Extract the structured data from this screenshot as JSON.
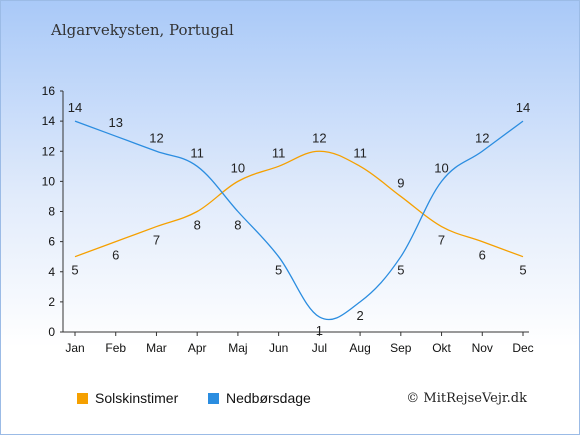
{
  "title": "Algarvekysten, Portugal",
  "credit": "© MitRejseVejr.dk",
  "chart_data": {
    "type": "line",
    "categories": [
      "Jan",
      "Feb",
      "Mar",
      "Apr",
      "Maj",
      "Jun",
      "Jul",
      "Aug",
      "Sep",
      "Okt",
      "Nov",
      "Dec"
    ],
    "ylim": [
      0,
      16
    ],
    "yticks": [
      0,
      2,
      4,
      6,
      8,
      10,
      12,
      14,
      16
    ],
    "grid": false,
    "legend_position": "bottom-left",
    "series": [
      {
        "name": "Solskinstimer",
        "color": "#f5a000",
        "values": [
          5,
          6,
          7,
          8,
          10,
          11,
          12,
          11,
          9,
          7,
          6,
          5
        ]
      },
      {
        "name": "Nedbørsdage",
        "color": "#2b8de0",
        "values": [
          14,
          13,
          12,
          11,
          8,
          5,
          1,
          2,
          5,
          10,
          12,
          14
        ]
      }
    ]
  }
}
